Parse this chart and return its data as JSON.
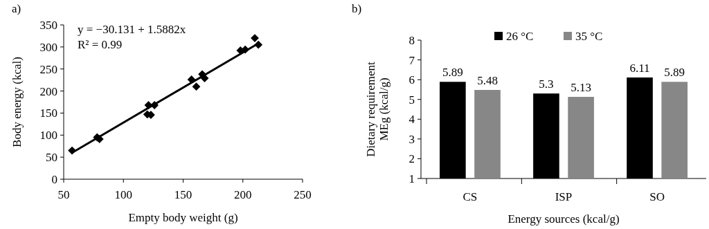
{
  "chart_data": [
    {
      "type": "scatter",
      "title": "a)",
      "xlabel": "Empty body weight (g)",
      "ylabel": "Body energy (kcal)",
      "xlim": [
        50,
        250
      ],
      "xticks": [
        50,
        100,
        150,
        200,
        250
      ],
      "ylim": [
        0,
        350
      ],
      "yticks": [
        0,
        50,
        100,
        150,
        200,
        250,
        300,
        350
      ],
      "annotations": [
        "y = −30.131 + 1.5882x",
        "R² = 0.99"
      ],
      "series": [
        {
          "type": "scatter",
          "marker": "diamond",
          "color": "#000000",
          "x": [
            57,
            78,
            80,
            120,
            121,
            123,
            126,
            157,
            161,
            166,
            168,
            198,
            202,
            210,
            213
          ],
          "values": [
            65,
            95,
            91,
            147,
            168,
            146,
            168,
            226,
            210,
            238,
            229,
            292,
            294,
            320,
            305
          ]
        },
        {
          "type": "line",
          "marker": "none",
          "color": "#000000",
          "x": [
            57,
            213
          ],
          "values": [
            60,
            308
          ]
        }
      ]
    },
    {
      "type": "bar",
      "title": "b)",
      "xlabel": "Energy sources (kcal/g)",
      "ylabel": "Dietary requirement MEg (kcal/g)",
      "categories": [
        "CS",
        "ISP",
        "SO"
      ],
      "ylim": [
        1,
        8
      ],
      "yticks": [
        1,
        2,
        3,
        4,
        5,
        6,
        7,
        8
      ],
      "data_labels": true,
      "legend": "top",
      "series": [
        {
          "name": "26 °C",
          "color": "#000000",
          "values": [
            5.89,
            5.3,
            6.11
          ]
        },
        {
          "name": "35 °C",
          "color": "#878787",
          "values": [
            5.48,
            5.13,
            5.89
          ]
        }
      ]
    }
  ]
}
